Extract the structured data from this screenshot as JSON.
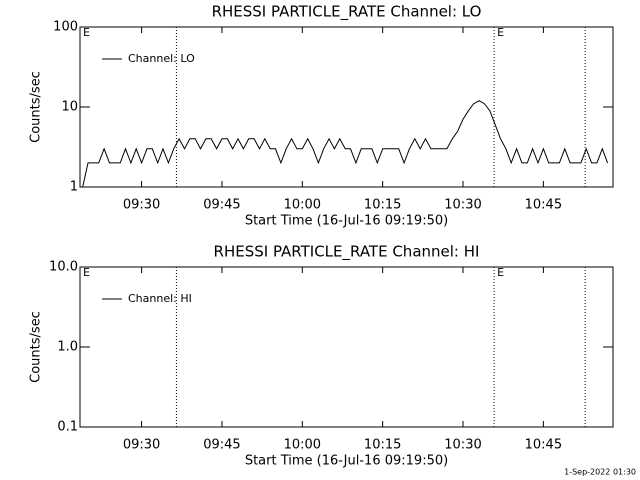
{
  "chart_data": [
    {
      "type": "line",
      "title": "RHESSI PARTICLE_RATE Channel: LO",
      "xlabel": "Start Time (16-Jul-16 09:19:50)",
      "ylabel": "Counts/sec",
      "x": [
        559,
        560,
        561,
        562,
        563,
        564,
        565,
        566,
        567,
        568,
        569,
        570,
        571,
        572,
        573,
        574,
        575,
        576,
        577,
        578,
        579,
        580,
        581,
        582,
        583,
        584,
        585,
        586,
        587,
        588,
        589,
        590,
        591,
        592,
        593,
        594,
        595,
        596,
        597,
        598,
        599,
        600,
        601,
        602,
        603,
        604,
        605,
        606,
        607,
        608,
        609,
        610,
        611,
        612,
        613,
        614,
        615,
        616,
        617,
        618,
        619,
        620,
        621,
        622,
        623,
        624,
        625,
        626,
        627,
        628,
        629,
        630,
        631,
        632,
        633,
        634,
        635,
        636,
        637,
        638,
        639,
        640,
        641,
        642,
        643,
        644,
        645,
        646,
        647,
        648,
        649,
        650,
        651,
        652,
        653,
        654,
        655,
        656,
        657
      ],
      "series": [
        {
          "name": "Channel: LO",
          "color": "#000000",
          "values": [
            1,
            2,
            2,
            2,
            3,
            2,
            2,
            2,
            3,
            2,
            3,
            2,
            3,
            3,
            2,
            3,
            2,
            3,
            4,
            3,
            4,
            4,
            3,
            4,
            4,
            3,
            4,
            4,
            3,
            4,
            3,
            4,
            4,
            3,
            4,
            3,
            3,
            2,
            3,
            4,
            3,
            3,
            4,
            3,
            2,
            3,
            4,
            3,
            4,
            3,
            3,
            2,
            3,
            3,
            3,
            2,
            3,
            3,
            3,
            3,
            2,
            3,
            4,
            3,
            4,
            3,
            3,
            3,
            3,
            4,
            5,
            7,
            9,
            11,
            12,
            11,
            9,
            6,
            4,
            3,
            2,
            3,
            2,
            2,
            3,
            2,
            3,
            2,
            2,
            2,
            3,
            2,
            2,
            2,
            3,
            2,
            2,
            3,
            2
          ]
        }
      ],
      "xlim": [
        558.5,
        658
      ],
      "ylim": [
        1,
        100
      ],
      "log_y": true,
      "xticks": [
        {
          "value": 570,
          "label": "09:30"
        },
        {
          "value": 585,
          "label": "09:45"
        },
        {
          "value": 600,
          "label": "10:00"
        },
        {
          "value": 615,
          "label": "10:15"
        },
        {
          "value": 630,
          "label": "10:30"
        },
        {
          "value": 645,
          "label": "10:45"
        }
      ],
      "yticks": [
        1,
        10,
        100
      ],
      "events": [
        576.5,
        635.8,
        652.8
      ],
      "annotations": [
        {
          "text": "E",
          "x": 558.5
        },
        {
          "text": "E",
          "x": 635.8
        }
      ]
    },
    {
      "type": "line",
      "title": "RHESSI PARTICLE_RATE Channel: HI",
      "xlabel": "Start Time (16-Jul-16 09:19:50)",
      "ylabel": "Counts/sec",
      "x": [],
      "series": [
        {
          "name": "Channel: HI",
          "color": "#000000",
          "values": []
        }
      ],
      "xlim": [
        558.5,
        658
      ],
      "ylim": [
        0.1,
        10
      ],
      "log_y": true,
      "xticks": [
        {
          "value": 570,
          "label": "09:30"
        },
        {
          "value": 585,
          "label": "09:45"
        },
        {
          "value": 600,
          "label": "10:00"
        },
        {
          "value": 615,
          "label": "10:15"
        },
        {
          "value": 630,
          "label": "10:30"
        },
        {
          "value": 645,
          "label": "10:45"
        }
      ],
      "yticks": [
        0.1,
        {
          "value": 1,
          "label": "1.0"
        },
        {
          "value": 10,
          "label": "10.0"
        }
      ],
      "events": [
        576.5,
        635.8,
        652.8
      ],
      "annotations": [
        {
          "text": "E",
          "x": 558.5
        },
        {
          "text": "E",
          "x": 635.8
        }
      ]
    }
  ],
  "footer": "1-Sep-2022 01:30"
}
